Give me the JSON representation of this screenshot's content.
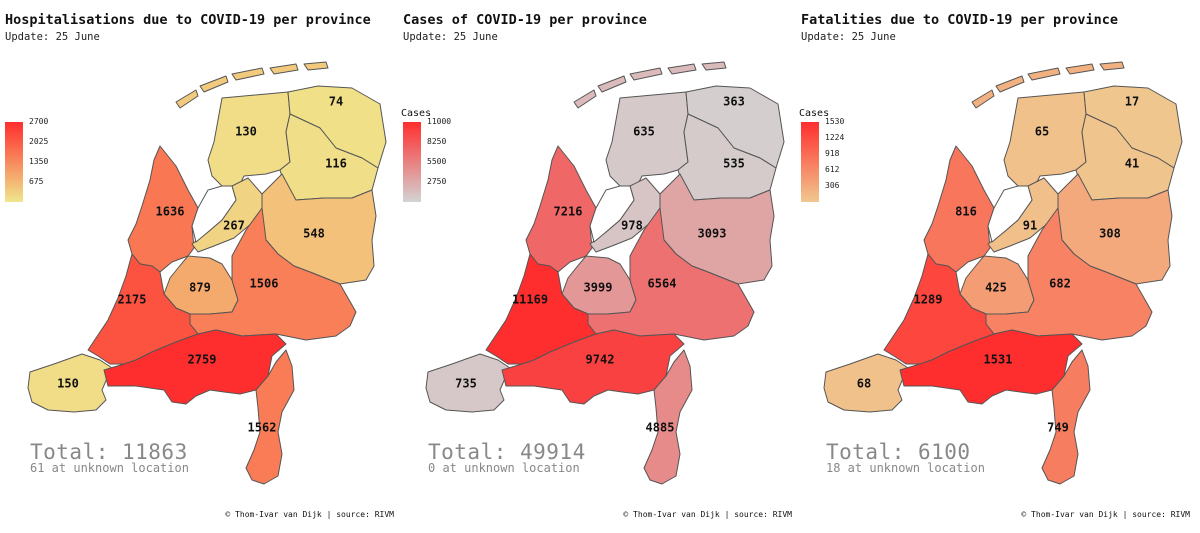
{
  "panels": [
    {
      "title": "Hospitalisations due to COVID-19 per province",
      "update": "Update: 25 June",
      "legend_title": "",
      "legend_ticks": [
        "2700",
        "2025",
        "1350",
        "675"
      ],
      "legend_max": 2700,
      "colors": [
        "#f0e68c",
        "#ff2e2e"
      ],
      "values": {
        "groningen": "74",
        "friesland": "130",
        "drenthe": "116",
        "noord_holland": "1636",
        "flevoland": "267",
        "overijssel": "548",
        "utrecht": "879",
        "gelderland": "1506",
        "zuid_holland": "2175",
        "zeeland": "150",
        "noord_brabant": "2759",
        "limburg": "1562"
      },
      "total": "Total: 11863",
      "unknown": "61 at unknown location",
      "credit": "© Thom-Ivar van Dijk | source: RIVM"
    },
    {
      "title": "Cases of COVID-19 per province",
      "update": "Update: 25 June",
      "legend_title": "Cases",
      "legend_ticks": [
        "11000",
        "8250",
        "5500",
        "2750"
      ],
      "legend_max": 11000,
      "colors": [
        "#d3d3d3",
        "#ff2e2e"
      ],
      "values": {
        "groningen": "363",
        "friesland": "635",
        "drenthe": "535",
        "noord_holland": "7216",
        "flevoland": "978",
        "overijssel": "3093",
        "utrecht": "3999",
        "gelderland": "6564",
        "zuid_holland": "11169",
        "zeeland": "735",
        "noord_brabant": "9742",
        "limburg": "4885"
      },
      "total": "Total: 49914",
      "unknown": "0 at unknown location",
      "credit": "© Thom-Ivar van Dijk | source: RIVM"
    },
    {
      "title": "Fatalities due to COVID-19 per province",
      "update": "Update: 25 June",
      "legend_title": "Cases",
      "legend_ticks": [
        "1530",
        "1224",
        "918",
        "612",
        "306"
      ],
      "legend_max": 1530,
      "colors": [
        "#f0c890",
        "#ff2e2e"
      ],
      "values": {
        "groningen": "17",
        "friesland": "65",
        "drenthe": "41",
        "noord_holland": "816",
        "flevoland": "91",
        "overijssel": "308",
        "utrecht": "425",
        "gelderland": "682",
        "zuid_holland": "1289",
        "zeeland": "68",
        "noord_brabant": "1531",
        "limburg": "749"
      },
      "total": "Total: 6100",
      "unknown": "18 at unknown location",
      "credit": "© Thom-Ivar van Dijk | source: RIVM"
    }
  ]
}
